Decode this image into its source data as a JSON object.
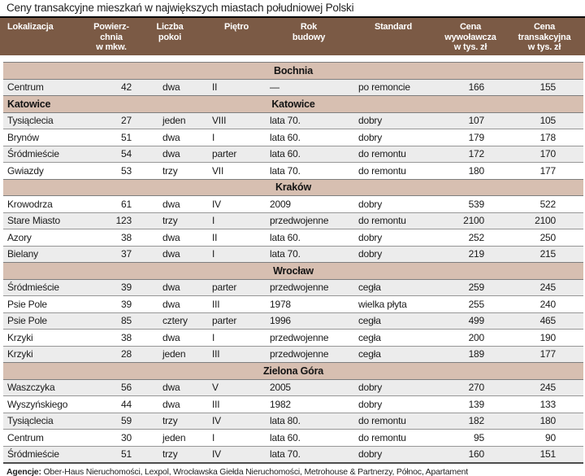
{
  "title": "Ceny transakcyjne mieszkań w największych miastach południowej Polski",
  "colors": {
    "header_bg": "#7b5a45",
    "header_text": "#ffffff",
    "section_bg": "#d7bfb1",
    "row_shaded_bg": "#ececec",
    "row_plain_bg": "#ffffff",
    "rule": "#979797",
    "text": "#1a1a1a"
  },
  "table": {
    "columns": [
      {
        "key": "lokalizacja",
        "label": "Lokalizacja"
      },
      {
        "key": "powierzchnia",
        "label": "Powierz-\nchnia\nw mkw."
      },
      {
        "key": "liczba-pokoi",
        "label": "Liczba\npokoi"
      },
      {
        "key": "pietro",
        "label": "Piętro"
      },
      {
        "key": "rok-budowy",
        "label": "Rok\nbudowy"
      },
      {
        "key": "standard",
        "label": "Standard"
      },
      {
        "key": "cena-wywolawcza",
        "label": "Cena\nwywoławcza\nw tys. zł"
      },
      {
        "key": "cena-transakcyjna",
        "label": "Cena\ntransakcyjna\nw tys. zł"
      }
    ],
    "sections": [
      {
        "name": "Bochnia",
        "left_label": "",
        "zebra_offset": 0,
        "rows": [
          [
            "Centrum",
            "42",
            "dwa",
            "II",
            "—",
            "po remoncie",
            "166",
            "155"
          ]
        ]
      },
      {
        "name": "Katowice",
        "left_label": "Katowice",
        "zebra_offset": 0,
        "rows": [
          [
            "Tysiąclecia",
            "27",
            "jeden",
            "VIII",
            "lata 70.",
            "dobry",
            "107",
            "105"
          ],
          [
            "Brynów",
            "51",
            "dwa",
            "I",
            "lata 60.",
            "dobry",
            "179",
            "178"
          ],
          [
            "Śródmieście",
            "54",
            "dwa",
            "parter",
            "lata 60.",
            "do remontu",
            "172",
            "170"
          ],
          [
            "Gwiazdy",
            "53",
            "trzy",
            "VII",
            "lata 70.",
            "do remontu",
            "180",
            "177"
          ]
        ]
      },
      {
        "name": "Kraków",
        "left_label": "",
        "zebra_offset": 1,
        "rows": [
          [
            "Krowodrza",
            "61",
            "dwa",
            "IV",
            "2009",
            "dobry",
            "539",
            "522"
          ],
          [
            "Stare Miasto",
            "123",
            "trzy",
            "I",
            "przedwojenne",
            "do remontu",
            "2100",
            "2100"
          ],
          [
            "Azory",
            "38",
            "dwa",
            "II",
            "lata 60.",
            "dobry",
            "252",
            "250"
          ],
          [
            "Bielany",
            "37",
            "dwa",
            "I",
            "lata 70.",
            "dobry",
            "219",
            "215"
          ]
        ]
      },
      {
        "name": "Wrocław",
        "left_label": "",
        "zebra_offset": 0,
        "rows": [
          [
            "Śródmieście",
            "39",
            "dwa",
            "parter",
            "przedwojenne",
            "cegła",
            "259",
            "245"
          ],
          [
            "Psie Pole",
            "39",
            "dwa",
            "III",
            "1978",
            "wielka płyta",
            "255",
            "240"
          ],
          [
            "Psie Pole",
            "85",
            "cztery",
            "parter",
            "1996",
            "cegła",
            "499",
            "465"
          ],
          [
            "Krzyki",
            "38",
            "dwa",
            "I",
            "przedwojenne",
            "cegła",
            "200",
            "190"
          ],
          [
            "Krzyki",
            "28",
            "jeden",
            "III",
            "przedwojenne",
            "cegła",
            "189",
            "177"
          ]
        ]
      },
      {
        "name": "Zielona Góra",
        "left_label": "",
        "zebra_offset": 0,
        "rows": [
          [
            "Waszczyka",
            "56",
            "dwa",
            "V",
            "2005",
            "dobry",
            "270",
            "245"
          ],
          [
            "Wyszyńskiego",
            "44",
            "dwa",
            "III",
            "1982",
            "dobry",
            "139",
            "133"
          ],
          [
            "Tysiąclecia",
            "59",
            "trzy",
            "IV",
            "lata 80.",
            "do remontu",
            "182",
            "180"
          ],
          [
            "Centrum",
            "30",
            "jeden",
            "I",
            "lata 60.",
            "do remontu",
            "95",
            "90"
          ],
          [
            "Śródmieście",
            "51",
            "trzy",
            "IV",
            "lata 70.",
            "dobry",
            "160",
            "151"
          ]
        ]
      }
    ]
  },
  "footer": {
    "label": "Agencje:",
    "text": " Ober-Haus Nieruchomości, Lexpol, Wrocławska Giełda Nieruchomości, Metrohouse & Partnerzy, Północ,  Apartament"
  }
}
